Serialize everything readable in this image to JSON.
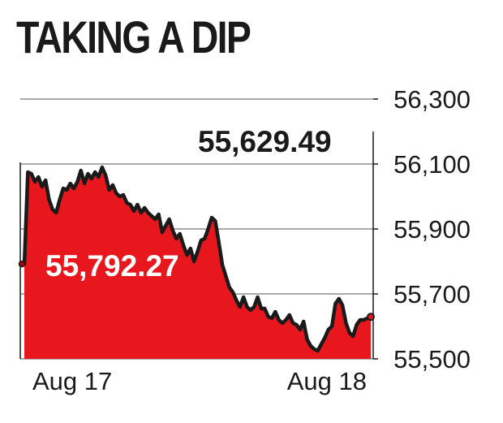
{
  "chart_data": {
    "type": "area",
    "title": "TAKING A DIP",
    "xlabel": "",
    "ylabel": "",
    "ylim": [
      55500,
      56300
    ],
    "yticks": [
      56300,
      56100,
      55900,
      55700,
      55500
    ],
    "ytick_labels": [
      "56,300",
      "56,100",
      "55,900",
      "55,700",
      "55,500"
    ],
    "x_tick_labels": [
      "Aug 17",
      "Aug 18"
    ],
    "annotations": {
      "open_label": "55,792.27",
      "close_label": "55,629.49"
    },
    "values": [
      55792.27,
      56075,
      56070,
      56045,
      56060,
      56030,
      56050,
      55990,
      55960,
      55950,
      55990,
      56025,
      56020,
      56040,
      56025,
      56045,
      56080,
      56040,
      56070,
      56055,
      56075,
      56060,
      56090,
      56065,
      56020,
      56035,
      56010,
      56000,
      56005,
      55980,
      55975,
      55955,
      55975,
      55950,
      55965,
      55950,
      55940,
      55930,
      55945,
      55890,
      55910,
      55930,
      55895,
      55870,
      55885,
      55850,
      55820,
      55840,
      55800,
      55830,
      55865,
      55870,
      55900,
      55935,
      55925,
      55860,
      55790,
      55755,
      55720,
      55705,
      55680,
      55660,
      55690,
      55660,
      55650,
      55660,
      55690,
      55655,
      55655,
      55630,
      55625,
      55645,
      55620,
      55610,
      55620,
      55635,
      55610,
      55605,
      55590,
      55615,
      55560,
      55540,
      55530,
      55525,
      55545,
      55565,
      55590,
      55600,
      55670,
      55685,
      55665,
      55610,
      55580,
      55570,
      55605,
      55620,
      55620,
      55625,
      55629.49
    ],
    "colors": {
      "fill": "#e8161d",
      "line": "#1a1a1a",
      "grid": "#555555",
      "axis": "#1a1a1a"
    }
  }
}
